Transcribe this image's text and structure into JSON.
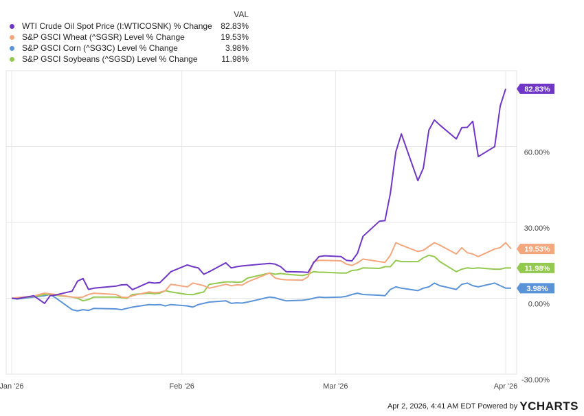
{
  "legend": {
    "header": "VAL",
    "rows": [
      {
        "name": "WTI Crude Oil Spot Price (I:WTICOSNK) % Change",
        "val": "82.83%",
        "color": "#6f35c6"
      },
      {
        "name": "S&P GSCI Wheat (^SGSR) Level % Change",
        "val": "19.53%",
        "color": "#f4a67c"
      },
      {
        "name": "S&P GSCI Corn (^SG3C) Level % Change",
        "val": "3.98%",
        "color": "#5b93d8"
      },
      {
        "name": "S&P GSCI Soybeans (^SGSD) Level % Change",
        "val": "11.98%",
        "color": "#93c94e"
      }
    ]
  },
  "footer": {
    "timestamp": "Apr 2, 2026, 4:41 AM EDT Powered by",
    "logo_prefix": "Y",
    "logo_rest": "CHARTS"
  },
  "chart_data": {
    "type": "line",
    "xlim": [
      "2025-12-31",
      "2026-04-03"
    ],
    "ylim": [
      -30,
      90
    ],
    "grid": true,
    "x_ticks": [
      {
        "date": "2026-01-01",
        "label": "Jan '26"
      },
      {
        "date": "2026-02-01",
        "label": "Feb '26"
      },
      {
        "date": "2026-03-01",
        "label": "Mar '26"
      },
      {
        "date": "2026-04-01",
        "label": "Apr '26"
      }
    ],
    "y_ticks": [
      {
        "value": 60,
        "label": "60.00%"
      },
      {
        "value": 30,
        "label": "30.00%"
      },
      {
        "value": 0,
        "label": "0.00%"
      },
      {
        "value": -30,
        "label": "-30.00%"
      }
    ],
    "series": [
      {
        "name": "WTI Crude Oil Spot Price (I:WTICOSNK) % Change",
        "color": "#6f35c6",
        "end_label": "82.83%",
        "points": [
          [
            "2026-01-01",
            0.0
          ],
          [
            "2026-01-02",
            -0.2
          ],
          [
            "2026-01-05",
            1.0
          ],
          [
            "2026-01-06",
            -0.5
          ],
          [
            "2026-01-07",
            -2.0
          ],
          [
            "2026-01-08",
            1.0
          ],
          [
            "2026-01-09",
            1.3
          ],
          [
            "2026-01-12",
            2.8
          ],
          [
            "2026-01-13",
            6.8
          ],
          [
            "2026-01-14",
            7.8
          ],
          [
            "2026-01-15",
            3.5
          ],
          [
            "2026-01-16",
            4.0
          ],
          [
            "2026-01-20",
            4.8
          ],
          [
            "2026-01-21",
            5.3
          ],
          [
            "2026-01-22",
            5.4
          ],
          [
            "2026-01-23",
            3.4
          ],
          [
            "2026-01-26",
            6.3
          ],
          [
            "2026-01-27",
            6.0
          ],
          [
            "2026-01-28",
            6.2
          ],
          [
            "2026-01-29",
            8.3
          ],
          [
            "2026-01-30",
            10.5
          ],
          [
            "2026-02-02",
            13.2
          ],
          [
            "2026-02-03",
            12.5
          ],
          [
            "2026-02-04",
            12.0
          ],
          [
            "2026-02-05",
            9.5
          ],
          [
            "2026-02-06",
            10.5
          ],
          [
            "2026-02-09",
            14.0
          ],
          [
            "2026-02-10",
            12.0
          ],
          [
            "2026-02-11",
            12.5
          ],
          [
            "2026-02-12",
            12.8
          ],
          [
            "2026-02-13",
            13.0
          ],
          [
            "2026-02-17",
            13.8
          ],
          [
            "2026-02-18",
            13.5
          ],
          [
            "2026-02-19",
            12.5
          ],
          [
            "2026-02-20",
            10.5
          ],
          [
            "2026-02-23",
            10.4
          ],
          [
            "2026-02-24",
            10.2
          ],
          [
            "2026-02-25",
            14.0
          ],
          [
            "2026-02-26",
            16.5
          ],
          [
            "2026-02-27",
            16.8
          ],
          [
            "2026-03-02",
            16.5
          ],
          [
            "2026-03-03",
            15.0
          ],
          [
            "2026-03-04",
            14.8
          ],
          [
            "2026-03-05",
            17.8
          ],
          [
            "2026-03-06",
            24.5
          ],
          [
            "2026-03-09",
            30.5
          ],
          [
            "2026-03-10",
            30.7
          ],
          [
            "2026-03-11",
            41.5
          ],
          [
            "2026-03-12",
            58.0
          ],
          [
            "2026-03-13",
            65.0
          ],
          [
            "2026-03-16",
            46.5
          ],
          [
            "2026-03-17",
            51.5
          ],
          [
            "2026-03-18",
            66.5
          ],
          [
            "2026-03-19",
            70.5
          ],
          [
            "2026-03-20",
            68.5
          ],
          [
            "2026-03-23",
            63.0
          ],
          [
            "2026-03-24",
            67.5
          ],
          [
            "2026-03-25",
            67.6
          ],
          [
            "2026-03-26",
            70.0
          ],
          [
            "2026-03-27",
            56.0
          ],
          [
            "2026-03-30",
            60.0
          ],
          [
            "2026-03-31",
            76.0
          ],
          [
            "2026-04-01",
            82.83
          ]
        ]
      },
      {
        "name": "S&P GSCI Wheat (^SGSR) Level % Change",
        "color": "#f4a67c",
        "end_label": "19.53%",
        "points": [
          [
            "2026-01-01",
            0.0
          ],
          [
            "2026-01-02",
            0.3
          ],
          [
            "2026-01-05",
            0.8
          ],
          [
            "2026-01-06",
            1.5
          ],
          [
            "2026-01-07",
            2.0
          ],
          [
            "2026-01-09",
            1.5
          ],
          [
            "2026-01-12",
            0.5
          ],
          [
            "2026-01-13",
            0.3
          ],
          [
            "2026-01-14",
            0.5
          ],
          [
            "2026-01-15",
            1.5
          ],
          [
            "2026-01-16",
            2.0
          ],
          [
            "2026-01-20",
            1.5
          ],
          [
            "2026-01-21",
            0.5
          ],
          [
            "2026-01-22",
            0.3
          ],
          [
            "2026-01-23",
            1.0
          ],
          [
            "2026-01-26",
            2.5
          ],
          [
            "2026-01-27",
            2.2
          ],
          [
            "2026-01-28",
            2.4
          ],
          [
            "2026-01-29",
            3.0
          ],
          [
            "2026-01-30",
            5.5
          ],
          [
            "2026-02-02",
            4.5
          ],
          [
            "2026-02-03",
            6.0
          ],
          [
            "2026-02-04",
            5.5
          ],
          [
            "2026-02-05",
            5.0
          ],
          [
            "2026-02-06",
            4.0
          ],
          [
            "2026-02-09",
            5.5
          ],
          [
            "2026-02-10",
            5.0
          ],
          [
            "2026-02-11",
            5.3
          ],
          [
            "2026-02-12",
            5.2
          ],
          [
            "2026-02-13",
            6.5
          ],
          [
            "2026-02-17",
            10.0
          ],
          [
            "2026-02-18",
            8.0
          ],
          [
            "2026-02-19",
            7.5
          ],
          [
            "2026-02-20",
            7.3
          ],
          [
            "2026-02-23",
            7.2
          ],
          [
            "2026-02-24",
            8.5
          ],
          [
            "2026-02-25",
            14.5
          ],
          [
            "2026-02-26",
            15.0
          ],
          [
            "2026-02-27",
            15.0
          ],
          [
            "2026-03-02",
            14.8
          ],
          [
            "2026-03-03",
            13.5
          ],
          [
            "2026-03-04",
            13.0
          ],
          [
            "2026-03-05",
            14.0
          ],
          [
            "2026-03-06",
            15.5
          ],
          [
            "2026-03-09",
            14.5
          ],
          [
            "2026-03-10",
            14.2
          ],
          [
            "2026-03-11",
            17.0
          ],
          [
            "2026-03-12",
            22.0
          ],
          [
            "2026-03-13",
            21.0
          ],
          [
            "2026-03-16",
            18.5
          ],
          [
            "2026-03-17",
            19.0
          ],
          [
            "2026-03-18",
            20.5
          ],
          [
            "2026-03-19",
            22.0
          ],
          [
            "2026-03-20",
            21.0
          ],
          [
            "2026-03-23",
            17.5
          ],
          [
            "2026-03-24",
            20.0
          ],
          [
            "2026-03-25",
            18.0
          ],
          [
            "2026-03-26",
            17.5
          ],
          [
            "2026-03-27",
            16.5
          ],
          [
            "2026-03-30",
            19.5
          ],
          [
            "2026-03-31",
            20.0
          ],
          [
            "2026-04-01",
            22.0
          ],
          [
            "2026-04-02",
            19.53
          ]
        ]
      },
      {
        "name": "S&P GSCI Corn (^SG3C) Level % Change",
        "color": "#5b93d8",
        "end_label": "3.98%",
        "points": [
          [
            "2026-01-01",
            0.0
          ],
          [
            "2026-01-02",
            -0.3
          ],
          [
            "2026-01-05",
            0.5
          ],
          [
            "2026-01-06",
            0.8
          ],
          [
            "2026-01-07",
            1.0
          ],
          [
            "2026-01-08",
            1.5
          ],
          [
            "2026-01-09",
            0.2
          ],
          [
            "2026-01-12",
            -4.5
          ],
          [
            "2026-01-13",
            -5.0
          ],
          [
            "2026-01-14",
            -4.5
          ],
          [
            "2026-01-15",
            -4.8
          ],
          [
            "2026-01-16",
            -4.0
          ],
          [
            "2026-01-20",
            -4.2
          ],
          [
            "2026-01-21",
            -4.5
          ],
          [
            "2026-01-22",
            -4.0
          ],
          [
            "2026-01-23",
            -3.5
          ],
          [
            "2026-01-26",
            -2.5
          ],
          [
            "2026-01-27",
            -2.6
          ],
          [
            "2026-01-28",
            -2.5
          ],
          [
            "2026-01-29",
            -3.0
          ],
          [
            "2026-01-30",
            -2.5
          ],
          [
            "2026-02-02",
            -3.0
          ],
          [
            "2026-02-03",
            -3.5
          ],
          [
            "2026-02-04",
            -2.5
          ],
          [
            "2026-02-05",
            -2.0
          ],
          [
            "2026-02-06",
            -1.5
          ],
          [
            "2026-02-09",
            -1.0
          ],
          [
            "2026-02-10",
            -2.0
          ],
          [
            "2026-02-11",
            -1.8
          ],
          [
            "2026-02-12",
            -1.9
          ],
          [
            "2026-02-13",
            -1.5
          ],
          [
            "2026-02-17",
            0.5
          ],
          [
            "2026-02-18",
            0.2
          ],
          [
            "2026-02-19",
            -0.5
          ],
          [
            "2026-02-20",
            -1.0
          ],
          [
            "2026-02-23",
            -0.8
          ],
          [
            "2026-02-24",
            -0.5
          ],
          [
            "2026-02-25",
            0.0
          ],
          [
            "2026-02-26",
            0.5
          ],
          [
            "2026-02-27",
            0.3
          ],
          [
            "2026-03-02",
            0.5
          ],
          [
            "2026-03-03",
            0.8
          ],
          [
            "2026-03-04",
            1.5
          ],
          [
            "2026-03-05",
            2.0
          ],
          [
            "2026-03-06",
            1.5
          ],
          [
            "2026-03-09",
            1.2
          ],
          [
            "2026-03-10",
            1.0
          ],
          [
            "2026-03-11",
            3.5
          ],
          [
            "2026-03-12",
            4.5
          ],
          [
            "2026-03-13",
            4.0
          ],
          [
            "2026-03-16",
            3.0
          ],
          [
            "2026-03-17",
            4.0
          ],
          [
            "2026-03-18",
            4.5
          ],
          [
            "2026-03-19",
            6.0
          ],
          [
            "2026-03-20",
            5.0
          ],
          [
            "2026-03-23",
            3.5
          ],
          [
            "2026-03-24",
            5.5
          ],
          [
            "2026-03-25",
            6.0
          ],
          [
            "2026-03-26",
            5.0
          ],
          [
            "2026-03-27",
            4.5
          ],
          [
            "2026-03-30",
            6.0
          ],
          [
            "2026-03-31",
            5.0
          ],
          [
            "2026-04-01",
            4.0
          ],
          [
            "2026-04-02",
            3.98
          ]
        ]
      },
      {
        "name": "S&P GSCI Soybeans (^SGSD) Level % Change",
        "color": "#93c94e",
        "end_label": "11.98%",
        "points": [
          [
            "2026-01-01",
            0.0
          ],
          [
            "2026-01-02",
            -0.1
          ],
          [
            "2026-01-05",
            0.8
          ],
          [
            "2026-01-06",
            1.0
          ],
          [
            "2026-01-07",
            1.5
          ],
          [
            "2026-01-09",
            1.2
          ],
          [
            "2026-01-12",
            0.5
          ],
          [
            "2026-01-13",
            0.0
          ],
          [
            "2026-01-14",
            -1.0
          ],
          [
            "2026-01-15",
            -0.5
          ],
          [
            "2026-01-16",
            0.5
          ],
          [
            "2026-01-20",
            0.5
          ],
          [
            "2026-01-21",
            0.2
          ],
          [
            "2026-01-22",
            0.0
          ],
          [
            "2026-01-23",
            1.5
          ],
          [
            "2026-01-26",
            2.0
          ],
          [
            "2026-01-27",
            1.8
          ],
          [
            "2026-01-28",
            2.0
          ],
          [
            "2026-01-29",
            3.0
          ],
          [
            "2026-01-30",
            2.5
          ],
          [
            "2026-02-02",
            1.5
          ],
          [
            "2026-02-03",
            1.4
          ],
          [
            "2026-02-04",
            2.0
          ],
          [
            "2026-02-05",
            2.5
          ],
          [
            "2026-02-06",
            5.5
          ],
          [
            "2026-02-09",
            6.5
          ],
          [
            "2026-02-10",
            6.5
          ],
          [
            "2026-02-11",
            6.3
          ],
          [
            "2026-02-12",
            6.5
          ],
          [
            "2026-02-13",
            8.0
          ],
          [
            "2026-02-17",
            10.0
          ],
          [
            "2026-02-18",
            9.5
          ],
          [
            "2026-02-19",
            9.8
          ],
          [
            "2026-02-20",
            9.5
          ],
          [
            "2026-02-23",
            9.0
          ],
          [
            "2026-02-24",
            9.5
          ],
          [
            "2026-02-25",
            10.5
          ],
          [
            "2026-02-26",
            10.3
          ],
          [
            "2026-02-27",
            10.3
          ],
          [
            "2026-03-02",
            10.0
          ],
          [
            "2026-03-03",
            10.0
          ],
          [
            "2026-03-04",
            11.0
          ],
          [
            "2026-03-05",
            11.2
          ],
          [
            "2026-03-06",
            12.0
          ],
          [
            "2026-03-09",
            11.8
          ],
          [
            "2026-03-10",
            12.5
          ],
          [
            "2026-03-11",
            12.5
          ],
          [
            "2026-03-12",
            15.0
          ],
          [
            "2026-03-13",
            14.5
          ],
          [
            "2026-03-16",
            14.5
          ],
          [
            "2026-03-17",
            16.0
          ],
          [
            "2026-03-18",
            17.0
          ],
          [
            "2026-03-19",
            16.5
          ],
          [
            "2026-03-20",
            14.5
          ],
          [
            "2026-03-23",
            10.5
          ],
          [
            "2026-03-24",
            11.5
          ],
          [
            "2026-03-25",
            12.0
          ],
          [
            "2026-03-26",
            11.8
          ],
          [
            "2026-03-27",
            12.0
          ],
          [
            "2026-03-30",
            11.5
          ],
          [
            "2026-03-31",
            11.5
          ],
          [
            "2026-04-01",
            12.0
          ],
          [
            "2026-04-02",
            11.98
          ]
        ]
      }
    ]
  }
}
